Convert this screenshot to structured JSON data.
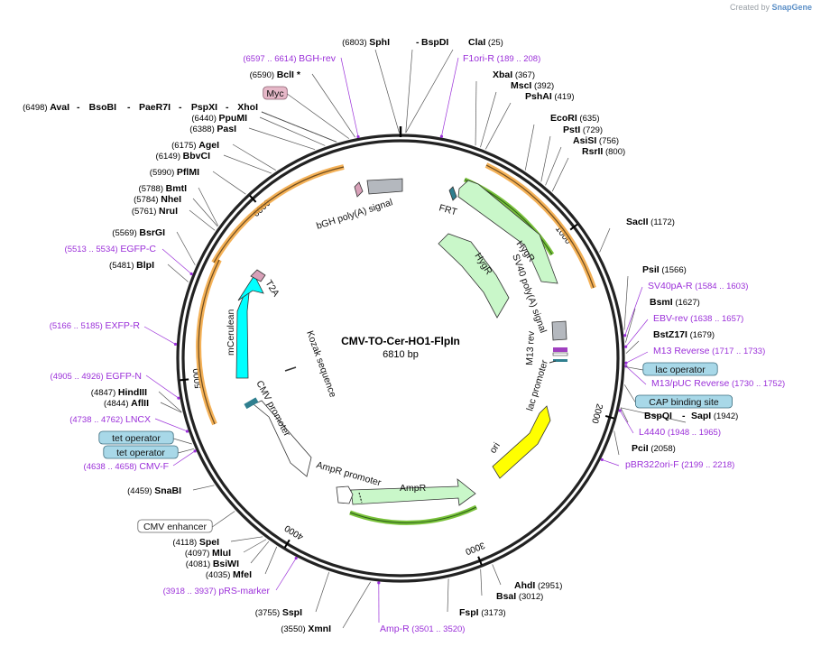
{
  "brand": {
    "prefix": "Created by",
    "name": "SnapGene"
  },
  "map": {
    "name": "CMV-TO-Cer-HO1-FlpIn",
    "size_label": "6810 bp",
    "total_bp": 6810
  },
  "ticks": [
    {
      "bp": 1000,
      "label": "1000"
    },
    {
      "bp": 2000,
      "label": "2000"
    },
    {
      "bp": 3000,
      "label": "3000"
    },
    {
      "bp": 4000,
      "label": "4000"
    },
    {
      "bp": 5000,
      "label": "5000"
    },
    {
      "bp": 6000,
      "label": "6000"
    }
  ],
  "enzymes": [
    {
      "name": "SphI",
      "pos": "(6803)",
      "bp": 6803
    },
    {
      "name": "BspDI",
      "pos": "",
      "bp": 25
    },
    {
      "name": "ClaI",
      "pos": "(25)",
      "bp": 25
    },
    {
      "name": "XbaI",
      "pos": "(367)",
      "bp": 367
    },
    {
      "name": "MscI",
      "pos": "(392)",
      "bp": 392
    },
    {
      "name": "PshAI",
      "pos": "(419)",
      "bp": 419
    },
    {
      "name": "EcoRI",
      "pos": "(635)",
      "bp": 635
    },
    {
      "name": "PstI",
      "pos": "(729)",
      "bp": 729
    },
    {
      "name": "AsiSI",
      "pos": "(756)",
      "bp": 756
    },
    {
      "name": "RsrII",
      "pos": "(800)",
      "bp": 800
    },
    {
      "name": "SacII",
      "pos": "(1172)",
      "bp": 1172
    },
    {
      "name": "PsiI",
      "pos": "(1566)",
      "bp": 1566
    },
    {
      "name": "BsmI",
      "pos": "(1627)",
      "bp": 1627
    },
    {
      "name": "BstZ17I",
      "pos": "(1679)",
      "bp": 1679
    },
    {
      "name": "BspQI",
      "pos": "",
      "bp": 1942
    },
    {
      "name": "SapI",
      "pos": "(1942)",
      "bp": 1942
    },
    {
      "name": "PciI",
      "pos": "(2058)",
      "bp": 2058
    },
    {
      "name": "AhdI",
      "pos": "(2951)",
      "bp": 2951
    },
    {
      "name": "BsaI",
      "pos": "(3012)",
      "bp": 3012
    },
    {
      "name": "FspI",
      "pos": "(3173)",
      "bp": 3173
    },
    {
      "name": "XmnI",
      "pos": "(3550)",
      "bp": 3550
    },
    {
      "name": "SspI",
      "pos": "(3755)",
      "bp": 3755
    },
    {
      "name": "MfeI",
      "pos": "(4035)",
      "bp": 4035
    },
    {
      "name": "BsiWI",
      "pos": "(4081)",
      "bp": 4081
    },
    {
      "name": "MluI",
      "pos": "(4097)",
      "bp": 4097
    },
    {
      "name": "SpeI",
      "pos": "(4118)",
      "bp": 4118
    },
    {
      "name": "SnaBI",
      "pos": "(4459)",
      "bp": 4459
    },
    {
      "name": "AflII",
      "pos": "(4844)",
      "bp": 4844
    },
    {
      "name": "HindIII",
      "pos": "(4847)",
      "bp": 4847
    },
    {
      "name": "BlpI",
      "pos": "(5481)",
      "bp": 5481
    },
    {
      "name": "BsrGI",
      "pos": "(5569)",
      "bp": 5569
    },
    {
      "name": "NruI",
      "pos": "(5761)",
      "bp": 5761
    },
    {
      "name": "NheI",
      "pos": "(5784)",
      "bp": 5784
    },
    {
      "name": "BmtI",
      "pos": "(5788)",
      "bp": 5788
    },
    {
      "name": "PflMI",
      "pos": "(5990)",
      "bp": 5990
    },
    {
      "name": "BbvCI",
      "pos": "(6149)",
      "bp": 6149
    },
    {
      "name": "AgeI",
      "pos": "(6175)",
      "bp": 6175
    },
    {
      "name": "PasI",
      "pos": "(6388)",
      "bp": 6388
    },
    {
      "name": "PpuMI",
      "pos": "(6440)",
      "bp": 6440
    },
    {
      "name": "AvaI",
      "pos": "(6498)",
      "bp": 6498
    },
    {
      "name": "BsoBI",
      "pos": "",
      "bp": 6498
    },
    {
      "name": "PaeR7I",
      "pos": "",
      "bp": 6498
    },
    {
      "name": "PspXI",
      "pos": "",
      "bp": 6498
    },
    {
      "name": "XhoI",
      "pos": "",
      "bp": 6498
    },
    {
      "name": "BclI",
      "pos": "(6590)",
      "bp": 6590,
      "star": "*"
    }
  ],
  "primers": [
    {
      "name": "BGH-rev",
      "range": "(6597 .. 6614)",
      "bp": 6605
    },
    {
      "name": "F1ori-R",
      "range": "(189 .. 208)",
      "bp": 198
    },
    {
      "name": "SV40pA-R",
      "range": "(1584 .. 1603)",
      "bp": 1593
    },
    {
      "name": "EBV-rev",
      "range": "(1638 .. 1657)",
      "bp": 1647
    },
    {
      "name": "M13 Reverse",
      "range": "(1717 .. 1733)",
      "bp": 1725
    },
    {
      "name": "M13/pUC Reverse",
      "range": "(1730 .. 1752)",
      "bp": 1741
    },
    {
      "name": "L4440",
      "range": "(1948 .. 1965)",
      "bp": 1956
    },
    {
      "name": "pBR322ori-F",
      "range": "(2199 .. 2218)",
      "bp": 2208
    },
    {
      "name": "Amp-R",
      "range": "(3501 .. 3520)",
      "bp": 3510
    },
    {
      "name": "pRS-marker",
      "range": "(3918 .. 3937)",
      "bp": 3927
    },
    {
      "name": "CMV-F",
      "range": "(4638 .. 4658)",
      "bp": 4648
    },
    {
      "name": "LNCX",
      "range": "(4738 .. 4762)",
      "bp": 4750
    },
    {
      "name": "EGFP-N",
      "range": "(4905 .. 4926)",
      "bp": 4915
    },
    {
      "name": "EXFP-R",
      "range": "(5166 .. 5185)",
      "bp": 5175
    },
    {
      "name": "EGFP-C",
      "range": "(5513 .. 5534)",
      "bp": 5523
    }
  ],
  "boxed_labels": [
    {
      "name": "Myc",
      "style": "pink",
      "bp": 6560
    },
    {
      "name": "lac operator",
      "style": "blue",
      "bp": 1744
    },
    {
      "name": "CAP binding site",
      "style": "blue",
      "bp": 1830
    },
    {
      "name": "tet operator",
      "style": "blue",
      "bp": 4685
    },
    {
      "name": "tet operator",
      "style": "blue",
      "bp": 4660
    },
    {
      "name": "CMV enhancer",
      "style": "white",
      "bp": 4300
    }
  ],
  "features": [
    {
      "name": "HygR",
      "kind": "gene",
      "color": "#c9f7c9",
      "label": "HygR"
    },
    {
      "name": "HygR",
      "kind": "gene",
      "color": "#c9f7c9",
      "label": "HygR"
    },
    {
      "name": "AmpR",
      "kind": "gene",
      "color": "#c9f7c9",
      "label": "AmpR"
    },
    {
      "name": "AmpR promoter",
      "kind": "promoter",
      "color": "#ffffff",
      "label": "AmpR promoter"
    },
    {
      "name": "ori",
      "kind": "origin",
      "color": "#ffff00",
      "label": "ori"
    },
    {
      "name": "mCerulean",
      "kind": "gene",
      "color": "#00ffff",
      "label": "mCerulean"
    },
    {
      "name": "T2A",
      "kind": "peptide",
      "color": "#d8a0b8",
      "label": "T2A"
    },
    {
      "name": "CMV promoter",
      "kind": "promoter",
      "color": "#ffffff",
      "label": "CMV promoter"
    },
    {
      "name": "bGH poly(A) signal",
      "kind": "terminator",
      "color": "#b4b8be",
      "label": "bGH poly(A) signal"
    },
    {
      "name": "SV40 poly(A) signal",
      "kind": "terminator",
      "color": "#b4b8be",
      "label": "SV40 poly(A) signal"
    },
    {
      "name": "FRT",
      "kind": "site",
      "color": "#2f7f8f",
      "label": "FRT"
    },
    {
      "name": "M13 rev",
      "kind": "primer_bind",
      "color": "#a040c0",
      "label": "M13 rev"
    },
    {
      "name": "lac promoter",
      "kind": "promoter",
      "color": "#ffffff",
      "label": "lac promoter"
    },
    {
      "name": "Kozak sequence",
      "kind": "misc",
      "color": "#888888",
      "label": "Kozak sequence"
    }
  ],
  "colors": {
    "primer": "#9b30d9",
    "enzyme": "#000000",
    "ring": "#222222",
    "orange": "#f2a33a",
    "green": "#4aa02c"
  }
}
